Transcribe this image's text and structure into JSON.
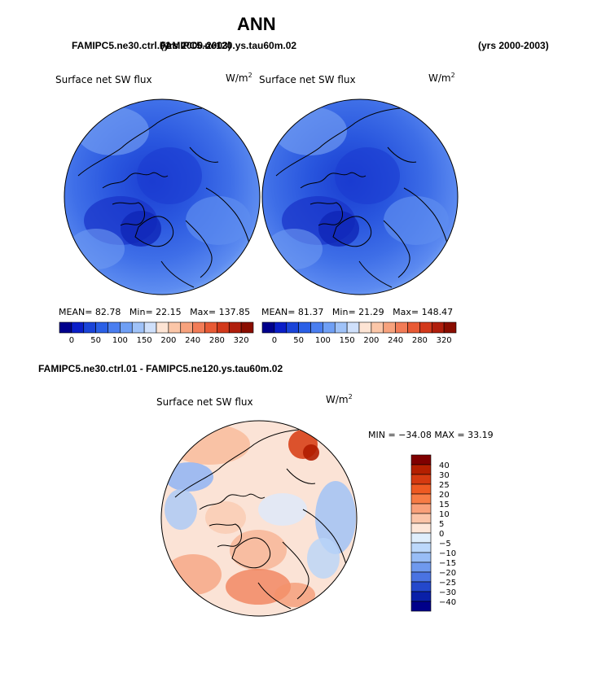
{
  "title": "ANN",
  "header": {
    "case_overlap": "FAMIPC5.ne30.ctrl.01",
    "case_overlap_b": "FAMIPC5.ne120.ys.tau60m.02",
    "years_left": "(yrs 2000-2003)",
    "years_right": "(yrs 2000-2003)"
  },
  "diff_header": "FAMIPC5.ne30.ctrl.01 - FAMIPC5.ne120.ys.tau60m.02",
  "chart_data": [
    {
      "type": "heatmap",
      "projection": "polar-stereographic (north)",
      "title": "Surface net SW flux",
      "units": "W/m",
      "units_exp": "2",
      "stats": {
        "mean_label": "MEAN=",
        "mean": "82.78",
        "min_label": "Min=",
        "min": "22.15",
        "max_label": "Max=",
        "max": "137.85"
      },
      "colorbar": {
        "levels": [
          "0",
          "50",
          "100",
          "150",
          "200",
          "240",
          "280",
          "320"
        ],
        "colors": [
          "#00008c",
          "#0a1ec8",
          "#1a44d8",
          "#2a5fe6",
          "#4a7ef0",
          "#6f9ff5",
          "#9fc2f8",
          "#cfe0fb",
          "#fde4d4",
          "#fbc6a8",
          "#f7a27d",
          "#f27c57",
          "#e85a35",
          "#d2391b",
          "#b01e0c",
          "#8a0d00"
        ]
      }
    },
    {
      "type": "heatmap",
      "projection": "polar-stereographic (north)",
      "title": "Surface net SW flux",
      "units": "W/m",
      "units_exp": "2",
      "stats": {
        "mean_label": "MEAN=",
        "mean": "81.37",
        "min_label": "Min=",
        "min": "21.29",
        "max_label": "Max=",
        "max": "148.47"
      },
      "colorbar": {
        "levels": [
          "0",
          "50",
          "100",
          "150",
          "200",
          "240",
          "280",
          "320"
        ],
        "colors": [
          "#00008c",
          "#0a1ec8",
          "#1a44d8",
          "#2a5fe6",
          "#4a7ef0",
          "#6f9ff5",
          "#9fc2f8",
          "#cfe0fb",
          "#fde4d4",
          "#fbc6a8",
          "#f7a27d",
          "#f27c57",
          "#e85a35",
          "#d2391b",
          "#b01e0c",
          "#8a0d00"
        ]
      }
    },
    {
      "type": "heatmap",
      "projection": "polar-stereographic (north)",
      "title": "Surface net SW flux",
      "units": "W/m",
      "units_exp": "2",
      "stats": {
        "text": "MIN = −34.08  MAX =  33.19"
      },
      "colorbar": {
        "levels": [
          "40",
          "30",
          "25",
          "20",
          "15",
          "10",
          "5",
          "0",
          "−5",
          "−10",
          "−15",
          "−20",
          "−25",
          "−30",
          "−40"
        ],
        "colors": [
          "#7f0000",
          "#b41f00",
          "#d53a10",
          "#ee5a22",
          "#f77c45",
          "#f9a07a",
          "#fbc4a8",
          "#fde6d8",
          "#dfeefc",
          "#bcd8fb",
          "#98bdf6",
          "#6f99ee",
          "#4a73e2",
          "#2448cc",
          "#0a20a8",
          "#00008a"
        ]
      }
    }
  ]
}
